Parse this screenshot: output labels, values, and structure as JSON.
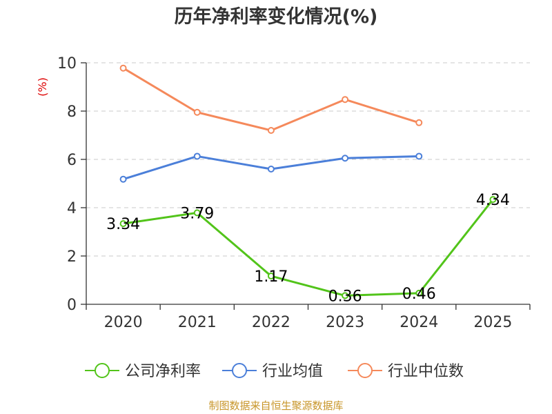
{
  "chart_data": {
    "type": "line",
    "title": "历年净利率变化情况(%)",
    "ylabel": "(%)",
    "xlabel": "",
    "categories": [
      "2020",
      "2021",
      "2022",
      "2023",
      "2024",
      "2025"
    ],
    "ylim": [
      0,
      10
    ],
    "yticks": [
      0,
      2,
      4,
      6,
      8,
      10
    ],
    "grid": true,
    "legend_position": "bottom",
    "series": [
      {
        "name": "公司净利率",
        "color": "#52c41a",
        "values": [
          3.34,
          3.79,
          1.17,
          0.36,
          0.46,
          4.34
        ],
        "labels": [
          "3.34",
          "3.79",
          "1.17",
          "0.36",
          "0.46",
          "4.34"
        ]
      },
      {
        "name": "行业均值",
        "color": "#4b7fd9",
        "values": [
          5.18,
          6.13,
          5.6,
          6.05,
          6.13,
          null
        ]
      },
      {
        "name": "行业中位数",
        "color": "#f5895b",
        "values": [
          9.78,
          7.95,
          7.2,
          8.48,
          7.52,
          null
        ]
      }
    ]
  },
  "source": "制图数据来自恒生聚源数据库"
}
